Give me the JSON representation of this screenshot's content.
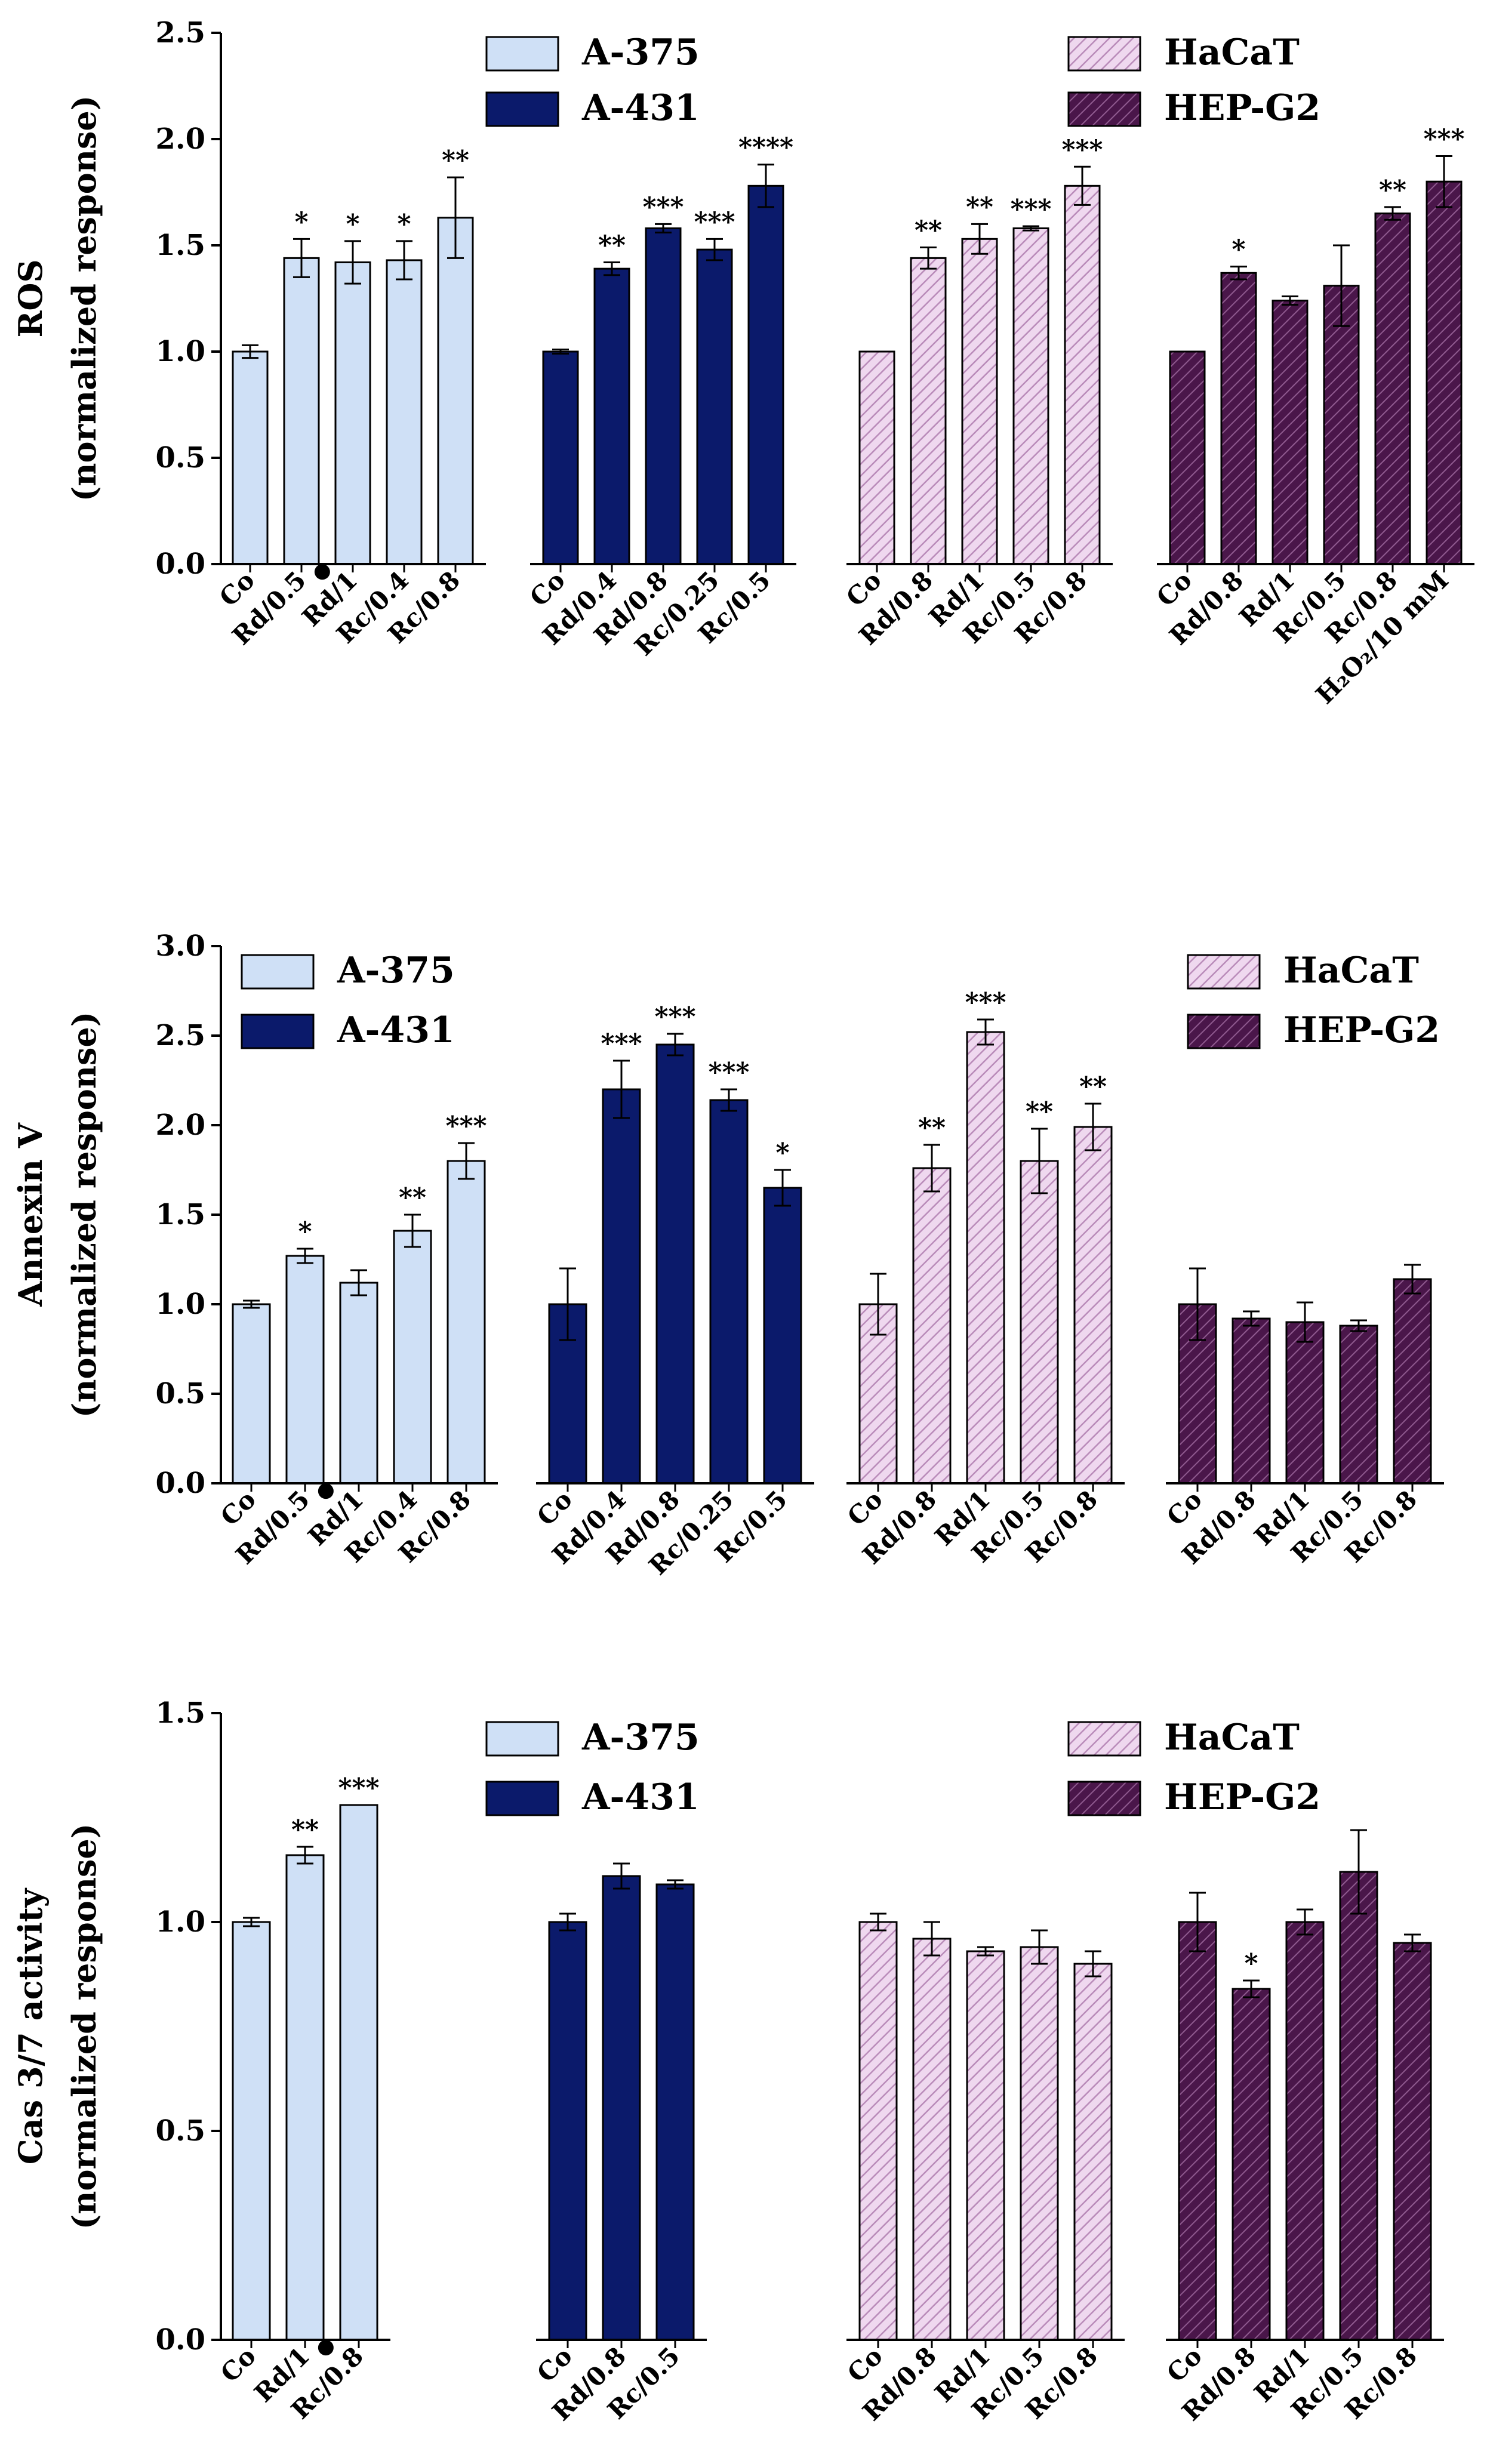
{
  "colors": {
    "A-375": "#cfe0f6",
    "A-431": "#0b1a6b",
    "HaCaT": "#e8cde8",
    "HEP-G2": "#521c52",
    "axis": "#000000"
  },
  "legend_labels": [
    "A-375",
    "A-431",
    "HaCaT",
    "HEP-G2"
  ],
  "bullet_glyph": "●",
  "chart_data": [
    {
      "type": "bar",
      "title": "",
      "ylabel": "ROS",
      "ylabel2": "(normalized response)",
      "ylim": [
        0,
        2.5
      ],
      "yticks": [
        "0.0",
        "0.5",
        "1.0",
        "1.5",
        "2.0",
        "2.5"
      ],
      "legend": [
        [
          "A-375",
          "A-431"
        ],
        [
          "HaCaT",
          "HEP-G2"
        ]
      ],
      "groups": [
        {
          "cell": "A-375",
          "bars": [
            {
              "label": "Co",
              "value": 1.0,
              "err": 0.03,
              "sig": ""
            },
            {
              "label": "Rd/0.5",
              "bullet": true,
              "value": 1.44,
              "err": 0.09,
              "sig": "*"
            },
            {
              "label": "Rd/1",
              "value": 1.42,
              "err": 0.1,
              "sig": "*"
            },
            {
              "label": "Rc/0.4",
              "value": 1.43,
              "err": 0.09,
              "sig": "*"
            },
            {
              "label": "Rc/0.8",
              "value": 1.63,
              "err": 0.19,
              "sig": "**"
            }
          ]
        },
        {
          "cell": "A-431",
          "bars": [
            {
              "label": "Co",
              "value": 1.0,
              "err": 0.01,
              "sig": ""
            },
            {
              "label": "Rd/0.4",
              "value": 1.39,
              "err": 0.03,
              "sig": "**"
            },
            {
              "label": "Rd/0.8",
              "value": 1.58,
              "err": 0.02,
              "sig": "***"
            },
            {
              "label": "Rc/0.25",
              "value": 1.48,
              "err": 0.05,
              "sig": "***"
            },
            {
              "label": "Rc/0.5",
              "value": 1.78,
              "err": 0.1,
              "sig": "****"
            }
          ]
        },
        {
          "cell": "HaCaT",
          "bars": [
            {
              "label": "Co",
              "value": 1.0,
              "err": 0.0,
              "sig": ""
            },
            {
              "label": "Rd/0.8",
              "value": 1.44,
              "err": 0.05,
              "sig": "**"
            },
            {
              "label": "Rd/1",
              "value": 1.53,
              "err": 0.07,
              "sig": "**"
            },
            {
              "label": "Rc/0.5",
              "value": 1.58,
              "err": 0.01,
              "sig": "***"
            },
            {
              "label": "Rc/0.8",
              "value": 1.78,
              "err": 0.09,
              "sig": "***"
            }
          ]
        },
        {
          "cell": "HEP-G2",
          "bars": [
            {
              "label": "Co",
              "value": 1.0,
              "err": 0.0,
              "sig": ""
            },
            {
              "label": "Rd/0.8",
              "value": 1.37,
              "err": 0.03,
              "sig": "*"
            },
            {
              "label": "Rd/1",
              "value": 1.24,
              "err": 0.02,
              "sig": ""
            },
            {
              "label": "Rc/0.5",
              "value": 1.31,
              "err": 0.19,
              "sig": ""
            },
            {
              "label": "Rc/0.8",
              "value": 1.65,
              "err": 0.03,
              "sig": "**"
            },
            {
              "label": "H₂O₂/10 mM",
              "value": 1.8,
              "err": 0.12,
              "sig": "***"
            }
          ]
        }
      ]
    },
    {
      "type": "bar",
      "title": "",
      "ylabel": "Annexin V",
      "ylabel2": "(normalized response)",
      "ylim": [
        0,
        3.0
      ],
      "yticks": [
        "0.0",
        "0.5",
        "1.0",
        "1.5",
        "2.0",
        "2.5",
        "3.0"
      ],
      "legend": [
        [
          "A-375",
          "A-431"
        ],
        [
          "HaCaT",
          "HEP-G2"
        ]
      ],
      "groups": [
        {
          "cell": "A-375",
          "bars": [
            {
              "label": "Co",
              "value": 1.0,
              "err": 0.02,
              "sig": ""
            },
            {
              "label": "Rd/0.5",
              "bullet": true,
              "value": 1.27,
              "err": 0.04,
              "sig": "*"
            },
            {
              "label": "Rd/1",
              "value": 1.12,
              "err": 0.07,
              "sig": ""
            },
            {
              "label": "Rc/0.4",
              "value": 1.41,
              "err": 0.09,
              "sig": "**"
            },
            {
              "label": "Rc/0.8",
              "value": 1.8,
              "err": 0.1,
              "sig": "***"
            }
          ]
        },
        {
          "cell": "A-431",
          "bars": [
            {
              "label": "Co",
              "value": 1.0,
              "err": 0.2,
              "sig": ""
            },
            {
              "label": "Rd/0.4",
              "value": 2.2,
              "err": 0.16,
              "sig": "***"
            },
            {
              "label": "Rd/0.8",
              "value": 2.45,
              "err": 0.06,
              "sig": "***"
            },
            {
              "label": "Rc/0.25",
              "value": 2.14,
              "err": 0.06,
              "sig": "***"
            },
            {
              "label": "Rc/0.5",
              "value": 1.65,
              "err": 0.1,
              "sig": "*"
            }
          ]
        },
        {
          "cell": "HaCaT",
          "bars": [
            {
              "label": "Co",
              "value": 1.0,
              "err": 0.17,
              "sig": ""
            },
            {
              "label": "Rd/0.8",
              "value": 1.76,
              "err": 0.13,
              "sig": "**"
            },
            {
              "label": "Rd/1",
              "value": 2.52,
              "err": 0.07,
              "sig": "***"
            },
            {
              "label": "Rc/0.5",
              "value": 1.8,
              "err": 0.18,
              "sig": "**"
            },
            {
              "label": "Rc/0.8",
              "value": 1.99,
              "err": 0.13,
              "sig": "**"
            }
          ]
        },
        {
          "cell": "HEP-G2",
          "bars": [
            {
              "label": "Co",
              "value": 1.0,
              "err": 0.2,
              "sig": ""
            },
            {
              "label": "Rd/0.8",
              "value": 0.92,
              "err": 0.04,
              "sig": ""
            },
            {
              "label": "Rd/1",
              "value": 0.9,
              "err": 0.11,
              "sig": ""
            },
            {
              "label": "Rc/0.5",
              "value": 0.88,
              "err": 0.03,
              "sig": ""
            },
            {
              "label": "Rc/0.8",
              "value": 1.14,
              "err": 0.08,
              "sig": ""
            }
          ]
        }
      ]
    },
    {
      "type": "bar",
      "title": "",
      "ylabel": "Cas 3/7 activity",
      "ylabel2": "(normalized response)",
      "ylim": [
        0,
        1.5
      ],
      "yticks": [
        "0.0",
        "0.5",
        "1.0",
        "1.5"
      ],
      "legend": [
        [
          "A-375",
          "A-431"
        ],
        [
          "HaCaT",
          "HEP-G2"
        ]
      ],
      "groups": [
        {
          "cell": "A-375",
          "bars": [
            {
              "label": "Co",
              "value": 1.0,
              "err": 0.01,
              "sig": ""
            },
            {
              "label": "Rd/1",
              "bullet": true,
              "value": 1.16,
              "err": 0.02,
              "sig": "**"
            },
            {
              "label": "Rc/0.8",
              "value": 1.28,
              "err": 0.0,
              "sig": "***"
            }
          ]
        },
        {
          "cell": "A-431",
          "bars": [
            {
              "label": "Co",
              "value": 1.0,
              "err": 0.02,
              "sig": ""
            },
            {
              "label": "Rd/0.8",
              "value": 1.11,
              "err": 0.03,
              "sig": ""
            },
            {
              "label": "Rc/0.5",
              "value": 1.09,
              "err": 0.01,
              "sig": ""
            }
          ]
        },
        {
          "cell": "HaCaT",
          "bars": [
            {
              "label": "Co",
              "value": 1.0,
              "err": 0.02,
              "sig": ""
            },
            {
              "label": "Rd/0.8",
              "value": 0.96,
              "err": 0.04,
              "sig": ""
            },
            {
              "label": "Rd/1",
              "value": 0.93,
              "err": 0.01,
              "sig": ""
            },
            {
              "label": "Rc/0.5",
              "value": 0.94,
              "err": 0.04,
              "sig": ""
            },
            {
              "label": "Rc/0.8",
              "value": 0.9,
              "err": 0.03,
              "sig": ""
            }
          ]
        },
        {
          "cell": "HEP-G2",
          "bars": [
            {
              "label": "Co",
              "value": 1.0,
              "err": 0.07,
              "sig": ""
            },
            {
              "label": "Rd/0.8",
              "value": 0.84,
              "err": 0.02,
              "sig": "*"
            },
            {
              "label": "Rd/1",
              "value": 1.0,
              "err": 0.03,
              "sig": ""
            },
            {
              "label": "Rc/0.5",
              "value": 1.12,
              "err": 0.1,
              "sig": ""
            },
            {
              "label": "Rc/0.8",
              "value": 0.95,
              "err": 0.02,
              "sig": ""
            }
          ]
        }
      ]
    }
  ]
}
